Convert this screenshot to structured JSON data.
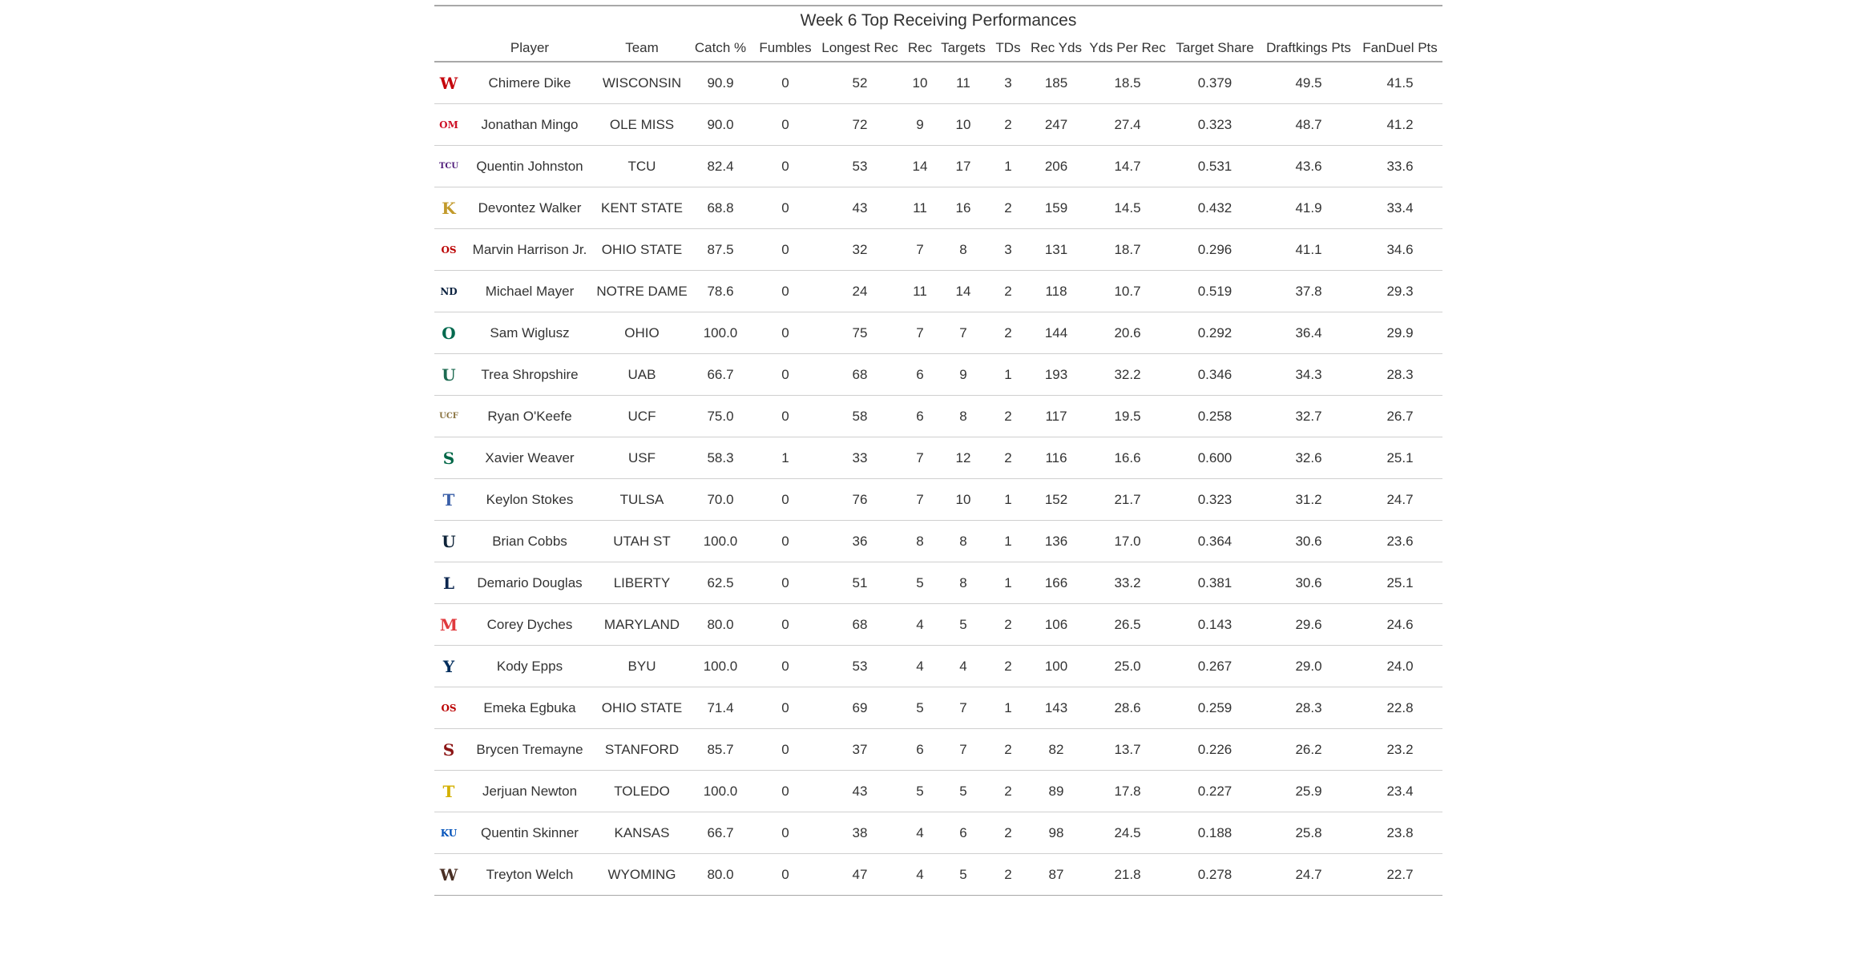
{
  "title": "Week 6 Top Receiving Performances",
  "columns": [
    "",
    "Player",
    "Team",
    "Catch %",
    "Fumbles",
    "Longest Rec",
    "Rec",
    "Targets",
    "TDs",
    "Rec Yds",
    "Yds Per Rec",
    "Target Share",
    "Draftkings Pts",
    "FanDuel Pts"
  ],
  "rows": [
    {
      "logo": "W",
      "logo_color": "#c5050c",
      "logo_name": "wisconsin-logo-icon",
      "player": "Chimere Dike",
      "team": "WISCONSIN",
      "catch_pct": "90.9",
      "fumbles": "0",
      "longest": "52",
      "rec": "10",
      "targets": "11",
      "tds": "3",
      "yds": "185",
      "ypr": "18.5",
      "share": "0.379",
      "dk": "49.5",
      "fd": "41.5"
    },
    {
      "logo": "OM",
      "logo_color": "#ce1126",
      "logo_name": "ole-miss-logo-icon",
      "player": "Jonathan Mingo",
      "team": "OLE MISS",
      "catch_pct": "90.0",
      "fumbles": "0",
      "longest": "72",
      "rec": "9",
      "targets": "10",
      "tds": "2",
      "yds": "247",
      "ypr": "27.4",
      "share": "0.323",
      "dk": "48.7",
      "fd": "41.2"
    },
    {
      "logo": "TCU",
      "logo_color": "#4d1979",
      "logo_name": "tcu-logo-icon",
      "player": "Quentin Johnston",
      "team": "TCU",
      "catch_pct": "82.4",
      "fumbles": "0",
      "longest": "53",
      "rec": "14",
      "targets": "17",
      "tds": "1",
      "yds": "206",
      "ypr": "14.7",
      "share": "0.531",
      "dk": "43.6",
      "fd": "33.6"
    },
    {
      "logo": "K",
      "logo_color": "#c29a2b",
      "logo_name": "kent-state-logo-icon",
      "player": "Devontez Walker",
      "team": "KENT STATE",
      "catch_pct": "68.8",
      "fumbles": "0",
      "longest": "43",
      "rec": "11",
      "targets": "16",
      "tds": "2",
      "yds": "159",
      "ypr": "14.5",
      "share": "0.432",
      "dk": "41.9",
      "fd": "33.4"
    },
    {
      "logo": "OS",
      "logo_color": "#bb0000",
      "logo_name": "ohio-state-logo-icon",
      "player": "Marvin Harrison Jr.",
      "team": "OHIO STATE",
      "catch_pct": "87.5",
      "fumbles": "0",
      "longest": "32",
      "rec": "7",
      "targets": "8",
      "tds": "3",
      "yds": "131",
      "ypr": "18.7",
      "share": "0.296",
      "dk": "41.1",
      "fd": "34.6"
    },
    {
      "logo": "ND",
      "logo_color": "#0c2340",
      "logo_name": "notre-dame-logo-icon",
      "player": "Michael Mayer",
      "team": "NOTRE DAME",
      "catch_pct": "78.6",
      "fumbles": "0",
      "longest": "24",
      "rec": "11",
      "targets": "14",
      "tds": "2",
      "yds": "118",
      "ypr": "10.7",
      "share": "0.519",
      "dk": "37.8",
      "fd": "29.3"
    },
    {
      "logo": "O",
      "logo_color": "#00694e",
      "logo_name": "ohio-logo-icon",
      "player": "Sam Wiglusz",
      "team": "OHIO",
      "catch_pct": "100.0",
      "fumbles": "0",
      "longest": "75",
      "rec": "7",
      "targets": "7",
      "tds": "2",
      "yds": "144",
      "ypr": "20.6",
      "share": "0.292",
      "dk": "36.4",
      "fd": "29.9"
    },
    {
      "logo": "U",
      "logo_color": "#1e6b52",
      "logo_name": "uab-logo-icon",
      "player": "Trea Shropshire",
      "team": "UAB",
      "catch_pct": "66.7",
      "fumbles": "0",
      "longest": "68",
      "rec": "6",
      "targets": "9",
      "tds": "1",
      "yds": "193",
      "ypr": "32.2",
      "share": "0.346",
      "dk": "34.3",
      "fd": "28.3"
    },
    {
      "logo": "UCF",
      "logo_color": "#8a7340",
      "logo_name": "ucf-logo-icon",
      "player": "Ryan O'Keefe",
      "team": "UCF",
      "catch_pct": "75.0",
      "fumbles": "0",
      "longest": "58",
      "rec": "6",
      "targets": "8",
      "tds": "2",
      "yds": "117",
      "ypr": "19.5",
      "share": "0.258",
      "dk": "32.7",
      "fd": "26.7"
    },
    {
      "logo": "S",
      "logo_color": "#006747",
      "logo_name": "usf-logo-icon",
      "player": "Xavier Weaver",
      "team": "USF",
      "catch_pct": "58.3",
      "fumbles": "1",
      "longest": "33",
      "rec": "7",
      "targets": "12",
      "tds": "2",
      "yds": "116",
      "ypr": "16.6",
      "share": "0.600",
      "dk": "32.6",
      "fd": "25.1"
    },
    {
      "logo": "T",
      "logo_color": "#3a5fa8",
      "logo_name": "tulsa-logo-icon",
      "player": "Keylon Stokes",
      "team": "TULSA",
      "catch_pct": "70.0",
      "fumbles": "0",
      "longest": "76",
      "rec": "7",
      "targets": "10",
      "tds": "1",
      "yds": "152",
      "ypr": "21.7",
      "share": "0.323",
      "dk": "31.2",
      "fd": "24.7"
    },
    {
      "logo": "U",
      "logo_color": "#0f2439",
      "logo_name": "utah-state-logo-icon",
      "player": "Brian Cobbs",
      "team": "UTAH ST",
      "catch_pct": "100.0",
      "fumbles": "0",
      "longest": "36",
      "rec": "8",
      "targets": "8",
      "tds": "1",
      "yds": "136",
      "ypr": "17.0",
      "share": "0.364",
      "dk": "30.6",
      "fd": "23.6"
    },
    {
      "logo": "L",
      "logo_color": "#0a254e",
      "logo_name": "liberty-logo-icon",
      "player": "Demario Douglas",
      "team": "LIBERTY",
      "catch_pct": "62.5",
      "fumbles": "0",
      "longest": "51",
      "rec": "5",
      "targets": "8",
      "tds": "1",
      "yds": "166",
      "ypr": "33.2",
      "share": "0.381",
      "dk": "30.6",
      "fd": "25.1"
    },
    {
      "logo": "M",
      "logo_color": "#e03a3e",
      "logo_name": "maryland-logo-icon",
      "player": "Corey Dyches",
      "team": "MARYLAND",
      "catch_pct": "80.0",
      "fumbles": "0",
      "longest": "68",
      "rec": "4",
      "targets": "5",
      "tds": "2",
      "yds": "106",
      "ypr": "26.5",
      "share": "0.143",
      "dk": "29.6",
      "fd": "24.6"
    },
    {
      "logo": "Y",
      "logo_color": "#002e5d",
      "logo_name": "byu-logo-icon",
      "player": "Kody Epps",
      "team": "BYU",
      "catch_pct": "100.0",
      "fumbles": "0",
      "longest": "53",
      "rec": "4",
      "targets": "4",
      "tds": "2",
      "yds": "100",
      "ypr": "25.0",
      "share": "0.267",
      "dk": "29.0",
      "fd": "24.0"
    },
    {
      "logo": "OS",
      "logo_color": "#bb0000",
      "logo_name": "ohio-state-logo-icon",
      "player": "Emeka Egbuka",
      "team": "OHIO STATE",
      "catch_pct": "71.4",
      "fumbles": "0",
      "longest": "69",
      "rec": "5",
      "targets": "7",
      "tds": "1",
      "yds": "143",
      "ypr": "28.6",
      "share": "0.259",
      "dk": "28.3",
      "fd": "22.8"
    },
    {
      "logo": "S",
      "logo_color": "#8c1515",
      "logo_name": "stanford-logo-icon",
      "player": "Brycen Tremayne",
      "team": "STANFORD",
      "catch_pct": "85.7",
      "fumbles": "0",
      "longest": "37",
      "rec": "6",
      "targets": "7",
      "tds": "2",
      "yds": "82",
      "ypr": "13.7",
      "share": "0.226",
      "dk": "26.2",
      "fd": "23.2"
    },
    {
      "logo": "T",
      "logo_color": "#d4b000",
      "logo_name": "toledo-logo-icon",
      "player": "Jerjuan Newton",
      "team": "TOLEDO",
      "catch_pct": "100.0",
      "fumbles": "0",
      "longest": "43",
      "rec": "5",
      "targets": "5",
      "tds": "2",
      "yds": "89",
      "ypr": "17.8",
      "share": "0.227",
      "dk": "25.9",
      "fd": "23.4"
    },
    {
      "logo": "KU",
      "logo_color": "#0051ba",
      "logo_name": "kansas-logo-icon",
      "player": "Quentin Skinner",
      "team": "KANSAS",
      "catch_pct": "66.7",
      "fumbles": "0",
      "longest": "38",
      "rec": "4",
      "targets": "6",
      "tds": "2",
      "yds": "98",
      "ypr": "24.5",
      "share": "0.188",
      "dk": "25.8",
      "fd": "23.8"
    },
    {
      "logo": "W",
      "logo_color": "#492f24",
      "logo_name": "wyoming-logo-icon",
      "player": "Treyton Welch",
      "team": "WYOMING",
      "catch_pct": "80.0",
      "fumbles": "0",
      "longest": "47",
      "rec": "4",
      "targets": "5",
      "tds": "2",
      "yds": "87",
      "ypr": "21.8",
      "share": "0.278",
      "dk": "24.7",
      "fd": "22.7"
    }
  ]
}
